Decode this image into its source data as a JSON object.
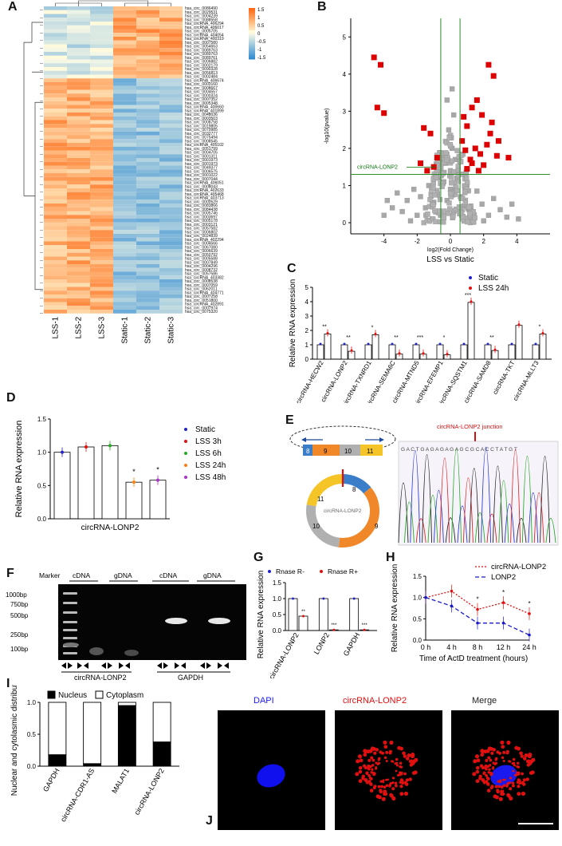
{
  "panel_labels": [
    "A",
    "B",
    "C",
    "D",
    "E",
    "F",
    "G",
    "H",
    "I",
    "J"
  ],
  "chart_data": [
    {
      "panel": "A",
      "type": "heatmap",
      "columns": [
        "LSS-1",
        "LSS-2",
        "LSS-3",
        "Static-1",
        "Static-2",
        "Static-3"
      ],
      "colorbar_ticks": [
        "1.5",
        "1",
        "0.5",
        "0",
        "-0.5",
        "-1",
        "-1.5"
      ],
      "rows": [
        "hsa_circ_0086490",
        "hsa_circ_0029531",
        "hsa_circ_0004239",
        "hsa_circ_0088558",
        "hsa_circRNA_406294",
        "hsa_circRNA_406017",
        "hsa_circ_0005705",
        "hsa_circRNA_404054",
        "hsa_circRNA_400319",
        "hsa_circ_0007580",
        "hsa_circ_0054663",
        "hsa_circ_0089763",
        "hsa_circ_0089763",
        "hsa_circ_0089761",
        "hsa_circ_0006882",
        "hsa_circ_0002179",
        "hsa_circ_0090328",
        "hsa_circ_0056813",
        "hsa_circ_0002484",
        "hsa_circRNA_406674",
        "hsa_circ_0003160",
        "hsa_circ_0008667",
        "hsa_circ_0004557",
        "hsa_circ_0000324",
        "hsa_circ_0007352",
        "hsa_circ_0005348",
        "hsa_circRNA_400660",
        "hsa_circRNA_401899",
        "hsa_circ_0048036",
        "hsa_circ_0003503",
        "hsa_circ_0008758",
        "hsa_circ_0019805",
        "hsa_circ_0079985",
        "hsa_circ_0032777",
        "hsa_circ_0075494",
        "hsa_circ_0008545",
        "hsa_circRNA_405102",
        "hsa_circ_0051799",
        "hsa_circ_0004705",
        "hsa_circ_0001311",
        "hsa_circ_0001973",
        "hsa_circ_0001973",
        "hsa_circ_0049377",
        "hsa_circ_0006575",
        "hsa_circ_0001022",
        "hsa_circ_0007044",
        "hsa_circRNA_406051",
        "hsa_circ_0008043",
        "hsa_circRNA_402633",
        "hsa_circRNA_405468",
        "hsa_circRNA_403713",
        "hsa_circ_0000529",
        "hsa_circ_0083866",
        "hsa_circ_0084438",
        "hsa_circ_0005746",
        "hsa_circ_0003697",
        "hsa_circ_0005178",
        "hsa_circ_0003121",
        "hsa_circ_0057582",
        "hsa_circ_0006802",
        "hsa_circ_0024839",
        "hsa_circRNA_402294",
        "hsa_circ_0004566",
        "hsa_circ_0067080",
        "hsa_circ_0006639",
        "hsa_circ_0050792",
        "hsa_circ_0005588",
        "hsa_circ_0007849",
        "hsa_circ_0004296",
        "hsa_circ_0008732",
        "hsa_circ_0057586",
        "hsa_circRNA_403382",
        "hsa_circ_0008538",
        "hsa_circ_0007059",
        "hsa_circ_0062011",
        "hsa_circRNA_404771",
        "hsa_circ_0007258",
        "hsa_circ_0051800",
        "hsa_circRNA_402891",
        "hsa_circ_0007974",
        "hsa_circ_0075320"
      ],
      "up_in_static_count": 19,
      "title": ""
    },
    {
      "panel": "B",
      "type": "scatter",
      "title": "LSS vs Static",
      "xlabel": "log2(Fold Change)",
      "ylabel": "-log10(pvalue)",
      "xlim": [
        -6,
        6
      ],
      "ylim": [
        -0.3,
        5.5
      ],
      "xticks": [
        -4,
        -2,
        0,
        2,
        4
      ],
      "yticks": [
        0,
        1,
        2,
        3,
        4,
        5
      ],
      "thresholds": {
        "x": [
          -0.58,
          0.58
        ],
        "y": 1.3
      },
      "annotation": "circRNA-LONP2",
      "red_points": [
        [
          -4.6,
          4.45
        ],
        [
          -4.2,
          4.25
        ],
        [
          -4.4,
          3.1
        ],
        [
          -4.0,
          2.95
        ],
        [
          2.3,
          4.25
        ],
        [
          2.6,
          3.95
        ],
        [
          -1.6,
          2.55
        ],
        [
          -1.2,
          2.4
        ],
        [
          1.3,
          3.1
        ],
        [
          1.6,
          3.3
        ],
        [
          0.8,
          2.85
        ],
        [
          1.0,
          2.6
        ],
        [
          3.5,
          1.75
        ],
        [
          2.4,
          2.4
        ],
        [
          2.2,
          2.1
        ],
        [
          1.8,
          1.85
        ],
        [
          1.2,
          1.7
        ],
        [
          1.5,
          2.0
        ],
        [
          -1.8,
          1.6
        ],
        [
          -1.4,
          1.4
        ],
        [
          -1.0,
          1.5
        ],
        [
          -0.8,
          1.75
        ],
        [
          1.0,
          1.45
        ],
        [
          0.9,
          1.95
        ],
        [
          2.0,
          1.55
        ],
        [
          1.7,
          1.4
        ],
        [
          2.8,
          1.8
        ],
        [
          2.9,
          2.2
        ],
        [
          0.7,
          2.2
        ],
        [
          1.3,
          1.6
        ],
        [
          2.5,
          2.7
        ],
        [
          1.9,
          2.9
        ]
      ],
      "gray_points": [
        [
          -3.5,
          0.4
        ],
        [
          -3.2,
          0.8
        ],
        [
          -2.6,
          0.6
        ],
        [
          -2.9,
          0.3
        ],
        [
          -2.2,
          0.9
        ],
        [
          -2.0,
          0.2
        ],
        [
          -1.8,
          0.7
        ],
        [
          -1.5,
          0.4
        ],
        [
          -1.3,
          1.0
        ],
        [
          -1.0,
          0.55
        ],
        [
          -0.8,
          0.8
        ],
        [
          -0.6,
          0.2
        ],
        [
          -0.4,
          1.1
        ],
        [
          -0.2,
          0.6
        ],
        [
          0.0,
          0.9
        ],
        [
          0.2,
          0.3
        ],
        [
          0.4,
          1.2
        ],
        [
          0.6,
          0.7
        ],
        [
          0.8,
          0.45
        ],
        [
          1.0,
          1.0
        ],
        [
          1.3,
          0.3
        ],
        [
          1.6,
          0.85
        ],
        [
          1.9,
          0.5
        ],
        [
          2.3,
          0.2
        ],
        [
          2.6,
          0.65
        ],
        [
          3.0,
          0.35
        ],
        [
          3.4,
          0.15
        ],
        [
          -0.3,
          1.6
        ],
        [
          0.1,
          2.0
        ],
        [
          -0.1,
          2.5
        ],
        [
          0.2,
          2.9
        ],
        [
          0.0,
          1.4
        ],
        [
          -0.5,
          1.8
        ],
        [
          0.3,
          1.7
        ],
        [
          -0.7,
          1.2
        ],
        [
          0.5,
          1.3
        ],
        [
          -1.1,
          0.1
        ],
        [
          1.2,
          0.1
        ],
        [
          -2.4,
          0.05
        ],
        [
          2.0,
          0.05
        ],
        [
          -0.2,
          3.3
        ],
        [
          0.1,
          3.6
        ],
        [
          -4.0,
          0.2
        ],
        [
          -3.8,
          0.6
        ],
        [
          3.7,
          0.5
        ],
        [
          4.1,
          0.1
        ]
      ]
    },
    {
      "panel": "C",
      "type": "bar",
      "ylabel": "Relative RNA expression",
      "ylim": [
        0,
        5
      ],
      "yticks": [
        0,
        1,
        2,
        3,
        4,
        5
      ],
      "categories": [
        "circRNA-HECW2",
        "circRNA-LONP2",
        "circRNA-TXNRD1",
        "circRNA-SEMA6C",
        "circRNA-MTND5",
        "circRNA-EFEMP1",
        "circRNA-SQSTM1",
        "circRNA-SAMD8",
        "circRNA-TKT",
        "circRNA-MLLT3"
      ],
      "series": [
        {
          "name": "Static",
          "color": "#2222cc",
          "values": [
            1,
            1,
            1,
            1,
            1,
            1,
            1,
            1,
            1,
            1
          ]
        },
        {
          "name": "LSS 24h",
          "color": "#e01010",
          "values": [
            1.75,
            0.55,
            1.7,
            0.35,
            0.35,
            0.3,
            3.95,
            0.6,
            2.35,
            1.75
          ]
        }
      ],
      "significance": [
        "**",
        "**",
        "*",
        "**",
        "***",
        "*",
        "***",
        "**",
        "",
        "*"
      ]
    },
    {
      "panel": "D",
      "type": "bar",
      "ylabel": "Relative RNA expression",
      "xlabel": "circRNA-LONP2",
      "ylim": [
        0,
        1.5
      ],
      "yticks": [
        0.0,
        0.5,
        1.0,
        1.5
      ],
      "categories": [
        "Static",
        "LSS 3h",
        "LSS 6h",
        "LSS 24h",
        "LSS 48h"
      ],
      "colors": [
        "#2222cc",
        "#e01010",
        "#22aa22",
        "#ff7f0e",
        "#aa33cc"
      ],
      "values": [
        1.0,
        1.08,
        1.1,
        0.55,
        0.58
      ],
      "significance": [
        "",
        "",
        "",
        "*",
        "*"
      ]
    },
    {
      "panel": "G",
      "type": "bar",
      "ylabel": "Relative RNA expression",
      "ylim": [
        0,
        1.5
      ],
      "yticks": [
        0.0,
        0.5,
        1.0,
        1.5
      ],
      "categories": [
        "circRNA-LONP2",
        "LONP2",
        "GAPDH"
      ],
      "series": [
        {
          "name": "Rnase R-",
          "color": "#2222cc",
          "values": [
            1.0,
            1.0,
            1.0
          ]
        },
        {
          "name": "Rnase R+",
          "color": "#e01010",
          "values": [
            0.45,
            0.02,
            0.02
          ]
        }
      ],
      "significance": [
        "**",
        "***",
        "***"
      ]
    },
    {
      "panel": "H",
      "type": "line",
      "ylabel": "Relative RNA expression",
      "xlabel": "Time of ActD treatment (hours)",
      "ylim": [
        0,
        1.5
      ],
      "yticks": [
        0.0,
        0.5,
        1.0,
        1.5
      ],
      "categories": [
        "0 h",
        "4 h",
        "8 h",
        "12 h",
        "24 h"
      ],
      "series": [
        {
          "name": "circRNA-LONP2",
          "color": "#e01010",
          "values": [
            1.0,
            1.15,
            0.72,
            0.88,
            0.62
          ]
        },
        {
          "name": "LONP2",
          "color": "#1a1acc",
          "values": [
            1.0,
            0.8,
            0.4,
            0.4,
            0.12
          ]
        }
      ],
      "significance": [
        "",
        "",
        "*",
        "*",
        "*"
      ]
    },
    {
      "panel": "I",
      "type": "bar",
      "stacked": true,
      "ylabel": "Nuclear and cytolasmic distribution",
      "ylim": [
        0,
        1.0
      ],
      "yticks": [
        0.0,
        0.5,
        1.0
      ],
      "categories": [
        "GAPDH",
        "circRNA-CDR1-AS",
        "MALAT1",
        "circRNA-LONP2"
      ],
      "series": [
        {
          "name": "Nucleus",
          "color": "#000000",
          "values": [
            0.18,
            0.04,
            0.95,
            0.38
          ]
        },
        {
          "name": "Cytoplasm",
          "color": "#ffffff",
          "values": [
            0.82,
            0.96,
            0.05,
            0.62
          ]
        }
      ]
    }
  ],
  "panelE": {
    "junction_label": "circRNA-LONP2 junction",
    "sequence": "G A C T G A G A G A G A G C G C A C C T A T G T",
    "exons": [
      "8",
      "9",
      "10",
      "11"
    ],
    "circle_label": "circRNA-LONP2"
  },
  "panelF": {
    "marker_label": "Marker",
    "lane_groups": [
      "cDNA",
      "gDNA",
      "cDNA",
      "gDNA"
    ],
    "ladder": [
      "1000bp",
      "750bp",
      "500bp",
      "250bp",
      "100bp"
    ],
    "gene_labels": [
      "circRNA-LONP2",
      "GAPDH"
    ]
  },
  "panelJ": {
    "titles": [
      "DAPI",
      "circRNA-LONP2",
      "Merge"
    ],
    "title_colors": [
      "#1a1aff",
      "#e01010",
      "#222222"
    ]
  }
}
